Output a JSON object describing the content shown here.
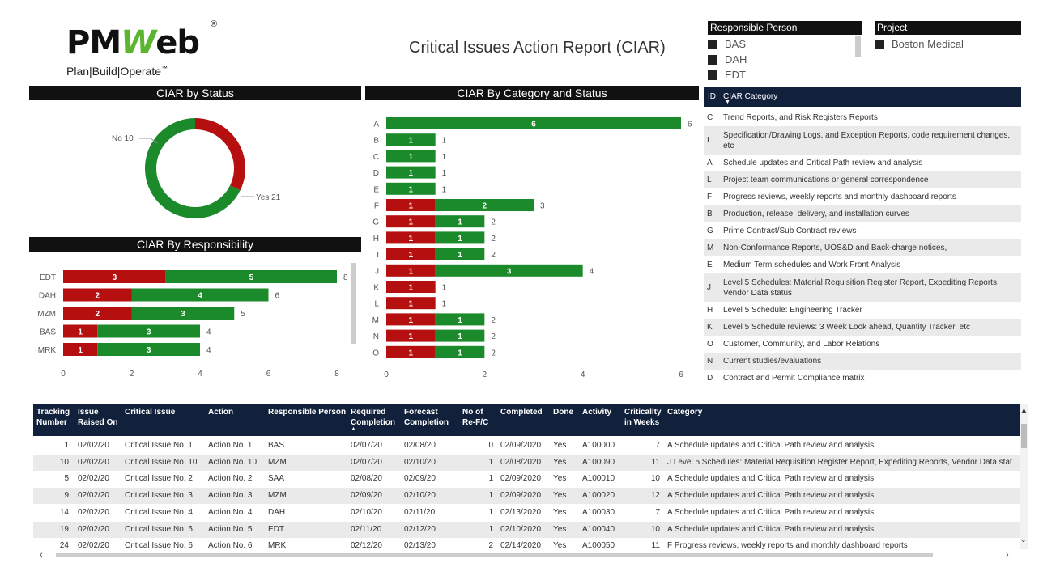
{
  "logo": {
    "brand_left": "PM",
    "brand_w": "W",
    "brand_right": "eb",
    "registered": "®",
    "tagline": "Plan|Build|Operate",
    "tm": "™"
  },
  "report_title": "Critical Issues Action Report (CIAR)",
  "slicers": {
    "responsible_person": {
      "title": "Responsible Person",
      "items": [
        "BAS",
        "DAH",
        "EDT"
      ]
    },
    "project": {
      "title": "Project",
      "items": [
        "Boston Medical"
      ]
    }
  },
  "colors": {
    "red": "#b50f10",
    "green": "#1a8a2a",
    "header_dark": "#12213b"
  },
  "visuals": {
    "status_title": "CIAR by Status",
    "category_status_title": "CIAR By Category and Status",
    "responsibility_title": "CIAR By Responsibility"
  },
  "chart_data": [
    {
      "type": "pie",
      "variant": "donut",
      "title": "CIAR by Status",
      "slices": [
        {
          "label": "No",
          "value": 10,
          "color": "#b50f10"
        },
        {
          "label": "Yes",
          "value": 21,
          "color": "#1a8a2a"
        }
      ],
      "labels": [
        "No 10",
        "Yes 21"
      ]
    },
    {
      "type": "bar",
      "orientation": "horizontal",
      "stacked": true,
      "title": "CIAR By Responsibility",
      "categories": [
        "EDT",
        "DAH",
        "MZM",
        "BAS",
        "MRK"
      ],
      "series": [
        {
          "color": "#b50f10",
          "values": [
            3,
            2,
            2,
            1,
            1
          ]
        },
        {
          "color": "#1a8a2a",
          "values": [
            5,
            4,
            3,
            3,
            3
          ]
        }
      ],
      "totals": [
        8,
        6,
        5,
        4,
        4
      ],
      "xlim": [
        0,
        8
      ],
      "xticks": [
        "0",
        "2",
        "4",
        "6",
        "8"
      ]
    },
    {
      "type": "bar",
      "orientation": "horizontal",
      "stacked": true,
      "title": "CIAR By Category and Status",
      "categories": [
        "A",
        "B",
        "C",
        "D",
        "E",
        "F",
        "G",
        "H",
        "I",
        "J",
        "K",
        "L",
        "M",
        "N",
        "O"
      ],
      "series": [
        {
          "color": "#b50f10",
          "values": [
            0,
            0,
            0,
            0,
            0,
            1,
            1,
            1,
            1,
            1,
            1,
            1,
            1,
            1,
            1
          ]
        },
        {
          "color": "#1a8a2a",
          "values": [
            6,
            1,
            1,
            1,
            1,
            2,
            1,
            1,
            1,
            3,
            0,
            0,
            1,
            1,
            1
          ]
        }
      ],
      "totals": [
        6,
        1,
        1,
        1,
        1,
        3,
        2,
        2,
        2,
        4,
        1,
        1,
        2,
        2,
        2
      ],
      "xlim": [
        0,
        6
      ],
      "xticks": [
        "0",
        "2",
        "4",
        "6"
      ]
    }
  ],
  "category_table": {
    "headers": {
      "id": "ID",
      "category": "CIAR Category"
    },
    "rows": [
      {
        "id": "C",
        "text": "Trend Reports, and Risk Registers Reports"
      },
      {
        "id": "I",
        "text": "Specification/Drawing Logs, and Exception Reports, code requirement changes, etc"
      },
      {
        "id": "A",
        "text": "Schedule updates and Critical Path review and analysis"
      },
      {
        "id": "L",
        "text": "Project team communications or general correspondence"
      },
      {
        "id": "F",
        "text": "Progress reviews, weekly reports and monthly dashboard reports"
      },
      {
        "id": "B",
        "text": "Production, release, delivery, and installation curves"
      },
      {
        "id": "G",
        "text": "Prime Contract/Sub Contract reviews"
      },
      {
        "id": "M",
        "text": "Non-Conformance Reports, UOS&D and Back-charge notices,"
      },
      {
        "id": "E",
        "text": "Medium Term schedules and Work Front Analysis"
      },
      {
        "id": "J",
        "text": "Level 5 Schedules: Material Requisition Register Report, Expediting Reports, Vendor Data status"
      },
      {
        "id": "H",
        "text": "Level 5 Schedule: Engineering Tracker"
      },
      {
        "id": "K",
        "text": "Level 5 Schedule reviews: 3 Week Look ahead, Quantity Tracker, etc"
      },
      {
        "id": "O",
        "text": "Customer, Community, and Labor Relations"
      },
      {
        "id": "N",
        "text": "Current studies/evaluations"
      },
      {
        "id": "D",
        "text": "Contract and Permit Compliance matrix"
      }
    ]
  },
  "grid": {
    "headers": {
      "tracking": "Tracking Number",
      "raised": "Issue Raised On",
      "issue": "Critical Issue",
      "action": "Action",
      "person": "Responsible Person",
      "required": "Required Completion",
      "forecast": "Forecast Completion",
      "refc": "No of Re-F/C",
      "completed": "Completed",
      "done": "Done",
      "activity": "Activity",
      "criticality": "Criticality in Weeks",
      "category": "Category"
    },
    "rows": [
      {
        "tracking": "1",
        "raised": "02/02/20",
        "issue": "Critical Issue No. 1",
        "action": "Action No. 1",
        "person": "BAS",
        "required": "02/07/20",
        "forecast": "02/08/20",
        "refc": "0",
        "completed": "02/09/2020",
        "done": "Yes",
        "activity": "A100000",
        "criticality": "7",
        "category": "A Schedule updates and Critical Path review and analysis"
      },
      {
        "tracking": "10",
        "raised": "02/02/20",
        "issue": "Critical Issue No. 10",
        "action": "Action No. 10",
        "person": "MZM",
        "required": "02/07/20",
        "forecast": "02/10/20",
        "refc": "1",
        "completed": "02/08/2020",
        "done": "Yes",
        "activity": "A100090",
        "criticality": "11",
        "category": "J Level 5 Schedules: Material Requisition Register Report, Expediting Reports, Vendor Data stat"
      },
      {
        "tracking": "5",
        "raised": "02/02/20",
        "issue": "Critical Issue No. 2",
        "action": "Action No. 2",
        "person": "SAA",
        "required": "02/08/20",
        "forecast": "02/09/20",
        "refc": "1",
        "completed": "02/09/2020",
        "done": "Yes",
        "activity": "A100010",
        "criticality": "10",
        "category": "A Schedule updates and Critical Path review and analysis"
      },
      {
        "tracking": "9",
        "raised": "02/02/20",
        "issue": "Critical Issue No. 3",
        "action": "Action No. 3",
        "person": "MZM",
        "required": "02/09/20",
        "forecast": "02/10/20",
        "refc": "1",
        "completed": "02/09/2020",
        "done": "Yes",
        "activity": "A100020",
        "criticality": "12",
        "category": "A Schedule updates and Critical Path review and analysis"
      },
      {
        "tracking": "14",
        "raised": "02/02/20",
        "issue": "Critical Issue No. 4",
        "action": "Action No. 4",
        "person": "DAH",
        "required": "02/10/20",
        "forecast": "02/11/20",
        "refc": "1",
        "completed": "02/13/2020",
        "done": "Yes",
        "activity": "A100030",
        "criticality": "7",
        "category": "A Schedule updates and Critical Path review and analysis"
      },
      {
        "tracking": "19",
        "raised": "02/02/20",
        "issue": "Critical Issue No. 5",
        "action": "Action No. 5",
        "person": "EDT",
        "required": "02/11/20",
        "forecast": "02/12/20",
        "refc": "1",
        "completed": "02/10/2020",
        "done": "Yes",
        "activity": "A100040",
        "criticality": "10",
        "category": "A Schedule updates and Critical Path review and analysis"
      },
      {
        "tracking": "24",
        "raised": "02/02/20",
        "issue": "Critical Issue No. 6",
        "action": "Action No. 6",
        "person": "MRK",
        "required": "02/12/20",
        "forecast": "02/13/20",
        "refc": "2",
        "completed": "02/14/2020",
        "done": "Yes",
        "activity": "A100050",
        "criticality": "11",
        "category": "F Progress reviews, weekly reports and monthly dashboard reports"
      }
    ]
  }
}
